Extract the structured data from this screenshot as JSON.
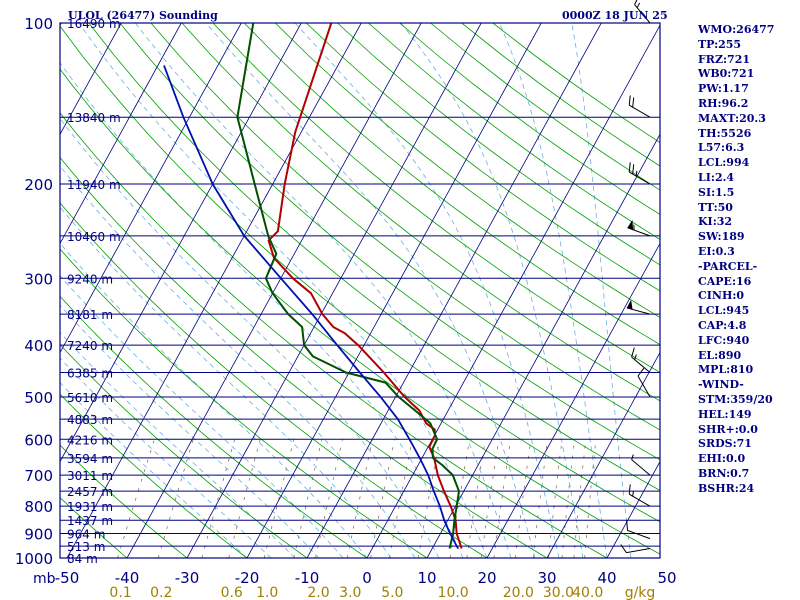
{
  "header": {
    "title_left": "ULOL (26477) Sounding",
    "title_right": "0000Z 18 JUN 25"
  },
  "indices": [
    "WMO:26477",
    "TP:255",
    "FRZ:721",
    "WB0:721",
    "PW:1.17",
    "RH:96.2",
    "MAXT:20.3",
    "TH:5526",
    "L57:6.3",
    "LCL:994",
    "LI:2.4",
    "SI:1.5",
    "TT:50",
    "KI:32",
    "SW:189",
    "EI:0.3",
    "-PARCEL-",
    "CAPE:16",
    "CINH:0",
    "LCL:945",
    "CAP:4.8",
    "LFC:940",
    "EL:890",
    "MPL:810",
    "-WIND-",
    "STM:359/20",
    "HEL:149",
    "SHR+:0.0",
    "SRDS:71",
    "EHI:0.0",
    "BRN:0.7",
    "BSHR:24"
  ],
  "colors": {
    "frame": "#000080",
    "isobar": "#000080",
    "isotherm": "#000080",
    "dry_adiabat": "#00a000",
    "moist_adiabat": "#6ab0e0",
    "mixing_ratio": "#806040",
    "temperature": "#b00000",
    "dewpoint": "#005000",
    "parcel": "#0010b0",
    "axis_text": "#000080",
    "mixing_text": "#a08000",
    "background": "#ffffff"
  },
  "chart_data": {
    "type": "skew-t log-p sounding",
    "ylim": [
      1000,
      100
    ],
    "xlim": [
      -50,
      50
    ],
    "pressure_ticks": [
      "100",
      "200",
      "300",
      "400",
      "500",
      "600",
      "700",
      "800",
      "900",
      "1000"
    ],
    "pressure_unit": "mb",
    "temperature_ticks": [
      "-50",
      "-40",
      "-30",
      "-20",
      "-10",
      "0",
      "10",
      "20",
      "30",
      "40",
      "50"
    ],
    "mixing_ratio_ticks": [
      "0.1",
      "0.2",
      "0.6",
      "1.0",
      "2.0",
      "3.0",
      "5.0",
      "10.0",
      "20.0",
      "30.0",
      "40.0"
    ],
    "mixing_ratio_unit": "g/kg",
    "isobars": [
      100,
      150,
      200,
      250,
      300,
      350,
      400,
      450,
      500,
      550,
      600,
      650,
      700,
      750,
      800,
      850,
      900,
      950,
      1000
    ],
    "height_labels": [
      {
        "p": 100,
        "label": "16490 m"
      },
      {
        "p": 150,
        "label": "13840 m"
      },
      {
        "p": 200,
        "label": "11940 m"
      },
      {
        "p": 250,
        "label": "10460 m"
      },
      {
        "p": 300,
        "label": "9240 m"
      },
      {
        "p": 350,
        "label": "8181 m"
      },
      {
        "p": 400,
        "label": "7240 m"
      },
      {
        "p": 450,
        "label": "6385 m"
      },
      {
        "p": 500,
        "label": "5610 m"
      },
      {
        "p": 550,
        "label": "4883 m"
      },
      {
        "p": 600,
        "label": "4216 m"
      },
      {
        "p": 650,
        "label": "3594 m"
      },
      {
        "p": 700,
        "label": "3011 m"
      },
      {
        "p": 750,
        "label": "2457 m"
      },
      {
        "p": 800,
        "label": "1931 m"
      },
      {
        "p": 850,
        "label": "1437 m"
      },
      {
        "p": 900,
        "label": "964 m"
      },
      {
        "p": 950,
        "label": "513 m"
      },
      {
        "p": 1000,
        "label": "84 m"
      }
    ],
    "series": [
      {
        "key": "temperature",
        "points": [
          [
            960,
            14.9
          ],
          [
            900,
            12.7
          ],
          [
            850,
            11.3
          ],
          [
            800,
            9.2
          ],
          [
            750,
            6.7
          ],
          [
            700,
            4.2
          ],
          [
            650,
            2.0
          ],
          [
            620,
            0.2
          ],
          [
            600,
            0.1
          ],
          [
            590,
            0.1
          ],
          [
            575,
            -0.5
          ],
          [
            560,
            -2.5
          ],
          [
            530,
            -4.8
          ],
          [
            500,
            -8.5
          ],
          [
            450,
            -14.2
          ],
          [
            400,
            -21
          ],
          [
            380,
            -24.3
          ],
          [
            370,
            -26.8
          ],
          [
            350,
            -29.8
          ],
          [
            320,
            -33.6
          ],
          [
            300,
            -38
          ],
          [
            275,
            -43
          ],
          [
            255,
            -45.5
          ],
          [
            245,
            -44.8
          ],
          [
            200,
            -48
          ],
          [
            160,
            -51
          ],
          [
            100,
            -55
          ]
        ]
      },
      {
        "key": "dewpoint",
        "points": [
          [
            960,
            12.9
          ],
          [
            900,
            12.1
          ],
          [
            850,
            11.1
          ],
          [
            800,
            10.2
          ],
          [
            750,
            9.2
          ],
          [
            700,
            6.7
          ],
          [
            670,
            4.0
          ],
          [
            650,
            1.8
          ],
          [
            625,
            0.9
          ],
          [
            600,
            0.8
          ],
          [
            560,
            -1.8
          ],
          [
            530,
            -5.5
          ],
          [
            500,
            -9.5
          ],
          [
            470,
            -13.0
          ],
          [
            450,
            -20.5
          ],
          [
            420,
            -27.5
          ],
          [
            400,
            -30
          ],
          [
            370,
            -32
          ],
          [
            350,
            -35.5
          ],
          [
            320,
            -40
          ],
          [
            300,
            -42.5
          ],
          [
            270,
            -43
          ],
          [
            250,
            -46
          ],
          [
            200,
            -53
          ],
          [
            150,
            -62
          ],
          [
            100,
            -68
          ]
        ]
      },
      {
        "key": "parcel",
        "points": [
          [
            960,
            14.3
          ],
          [
            900,
            11.6
          ],
          [
            850,
            9.4
          ],
          [
            800,
            7.4
          ],
          [
            750,
            5.0
          ],
          [
            700,
            2.6
          ],
          [
            650,
            -0.4
          ],
          [
            600,
            -3.8
          ],
          [
            550,
            -7.6
          ],
          [
            500,
            -12.5
          ],
          [
            450,
            -18.2
          ],
          [
            400,
            -24.5
          ],
          [
            350,
            -31.5
          ],
          [
            300,
            -40
          ],
          [
            250,
            -50
          ],
          [
            200,
            -60
          ],
          [
            150,
            -71
          ],
          [
            120,
            -79
          ]
        ]
      }
    ],
    "wind_barbs": [
      {
        "p": 100,
        "dir": 320,
        "kt": 15
      },
      {
        "p": 150,
        "dir": 300,
        "kt": 20
      },
      {
        "p": 200,
        "dir": 300,
        "kt": 25
      },
      {
        "p": 250,
        "dir": 290,
        "kt": 55
      },
      {
        "p": 350,
        "dir": 285,
        "kt": 50
      },
      {
        "p": 450,
        "dir": 310,
        "kt": 15
      },
      {
        "p": 500,
        "dir": 330,
        "kt": 10
      },
      {
        "p": 700,
        "dir": 310,
        "kt": 5
      },
      {
        "p": 800,
        "dir": 300,
        "kt": 15
      },
      {
        "p": 920,
        "dir": 290,
        "kt": 10
      },
      {
        "p": 960,
        "dir": 260,
        "kt": 10
      }
    ]
  }
}
